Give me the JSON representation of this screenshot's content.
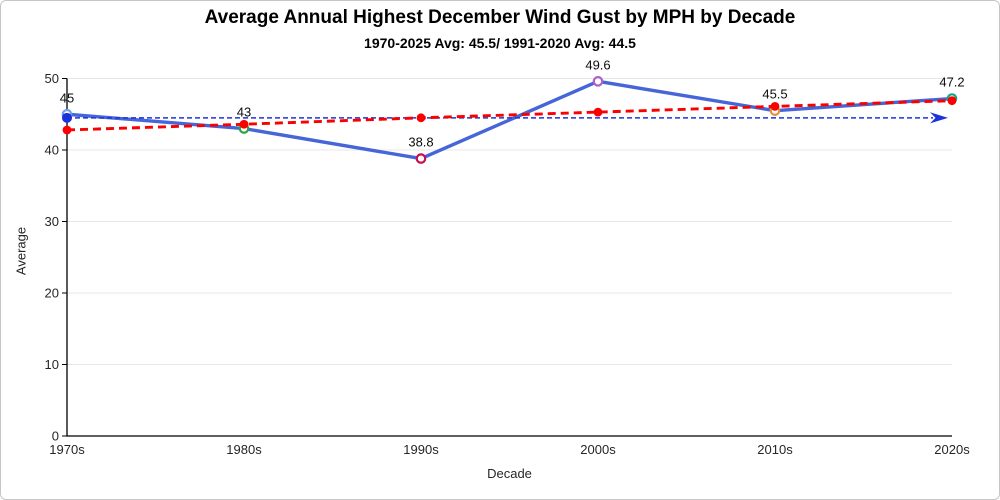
{
  "chart_data": {
    "type": "line",
    "title": "Average Annual Highest December Wind Gust by MPH by Decade",
    "subtitle": "1970-2025 Avg: 45.5/ 1991-2020 Avg: 44.5",
    "xlabel": "Decade",
    "ylabel": "Average",
    "categories": [
      "1970s",
      "1980s",
      "1990s",
      "2000s",
      "2010s",
      "2020s"
    ],
    "ylim": [
      0,
      50
    ],
    "yticks": [
      0,
      10,
      20,
      30,
      40,
      50
    ],
    "grid": "horizontal",
    "legend": "none",
    "series": [
      {
        "name": "decade-average",
        "type": "line",
        "style": "solid",
        "color": "#4565D8",
        "marker": "open-circle",
        "marker_colors": [
          "#6E9EEA",
          "#2FA144",
          "#C3134E",
          "#B05FC6",
          "#E69138",
          "#17A589"
        ],
        "values": [
          45,
          43,
          38.8,
          49.6,
          45.5,
          47.2
        ],
        "data_labels": [
          "45",
          "43",
          "38.8",
          "49.6",
          "45.5",
          "47.2"
        ]
      },
      {
        "name": "linear-trend",
        "type": "line",
        "style": "dashed",
        "color": "#FB0000",
        "marker": "filled-circle",
        "values": [
          42.8,
          43.6,
          44.5,
          45.3,
          46.1,
          46.9
        ]
      },
      {
        "name": "reference-average-1991-2020",
        "type": "horizontal-arrow-line",
        "style": "dashed",
        "color": "#1C33DB",
        "value": 44.5
      }
    ],
    "axis_color": "#000000",
    "gridline_color": "#e7e7e7"
  }
}
